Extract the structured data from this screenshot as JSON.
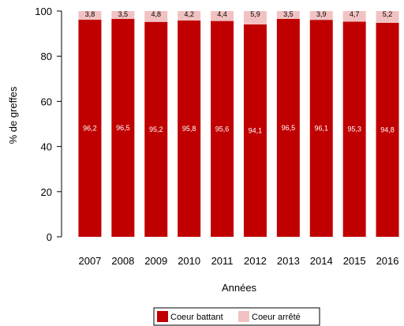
{
  "chart_data": {
    "type": "bar",
    "stacked": true,
    "categories": [
      "2007",
      "2008",
      "2009",
      "2010",
      "2011",
      "2012",
      "2013",
      "2014",
      "2015",
      "2016"
    ],
    "series": [
      {
        "name": "Coeur battant",
        "color": "#c00000",
        "values": [
          96.2,
          96.5,
          95.2,
          95.8,
          95.6,
          94.1,
          96.5,
          96.1,
          95.3,
          94.8
        ]
      },
      {
        "name": "Coeur arrêté",
        "color": "#f2c2c2",
        "values": [
          3.8,
          3.5,
          4.8,
          4.2,
          4.4,
          5.9,
          3.5,
          3.9,
          4.7,
          5.2
        ]
      }
    ],
    "series_labels": [
      [
        "96,2",
        "96,5",
        "95,2",
        "95,8",
        "95,6",
        "94,1",
        "96,5",
        "96,1",
        "95,3",
        "94,8"
      ],
      [
        "3,8",
        "3,5",
        "4,8",
        "4,2",
        "4,4",
        "5,9",
        "3,5",
        "3,9",
        "4,7",
        "5,2"
      ]
    ],
    "xlabel": "Années",
    "ylabel": "% de greffes",
    "ylim": [
      0,
      100
    ],
    "yticks": [
      0,
      20,
      40,
      60,
      80,
      100
    ],
    "grid": false,
    "legend": "bottom-center"
  }
}
